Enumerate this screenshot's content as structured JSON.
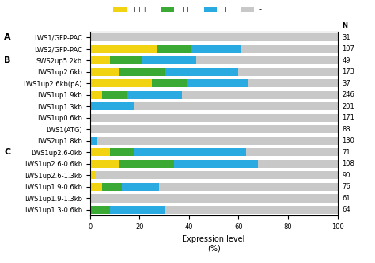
{
  "chart_data": {
    "type": "bar",
    "orientation": "horizontal",
    "stacked": true,
    "xlabel": "Expression level\n(%)",
    "categories": [
      "LWS1/GFP-PAC",
      "LWS2/GFP-PAC",
      "SWS2up5.2kb",
      "LWS1up2.6kb",
      "LWS1up2.6kb(pA)",
      "LWS1up1.9kb",
      "LWS1up1.3kb",
      "LWS1up0.6kb",
      "LWS1(ATG)",
      "LWS2up1.8kb",
      "LWS1up2.6-0kb",
      "LWS1up2.6-0.6kb",
      "LWS1up2.6-1.3kb",
      "LWS1up1.9-0.6kb",
      "LWS1up1.9-1.3kb",
      "LWS1up1.3-0.6kb"
    ],
    "groups": [
      "A",
      "A",
      "B",
      "B",
      "B",
      "B",
      "B",
      "B",
      "B",
      "B",
      "C",
      "C",
      "C",
      "C",
      "C",
      "C"
    ],
    "n_label": "N",
    "n": [
      31,
      107,
      49,
      173,
      37,
      246,
      201,
      171,
      83,
      130,
      71,
      108,
      90,
      76,
      61,
      64
    ],
    "series": [
      {
        "name": "+++",
        "color": "#f2d311",
        "values": [
          0,
          27,
          8,
          12,
          25,
          5,
          0,
          0,
          0,
          0,
          8,
          12,
          2,
          5,
          0,
          0
        ]
      },
      {
        "name": "++",
        "color": "#3aaa35",
        "values": [
          0,
          14,
          13,
          18,
          14,
          10,
          0,
          0,
          0,
          0,
          10,
          22,
          0,
          8,
          0,
          8
        ]
      },
      {
        "name": "+",
        "color": "#29abe2",
        "values": [
          0,
          20,
          22,
          30,
          25,
          22,
          18,
          0,
          0,
          3,
          45,
          34,
          0,
          15,
          0,
          22
        ]
      },
      {
        "name": "-",
        "color": "#c8c8c8",
        "values": [
          100,
          39,
          57,
          40,
          36,
          63,
          82,
          100,
          100,
          97,
          37,
          32,
          98,
          72,
          100,
          70
        ]
      }
    ],
    "xlim": [
      0,
      100
    ],
    "xticks": [
      0,
      20,
      40,
      60,
      80,
      100
    ],
    "legend": "upper center",
    "grid": false
  }
}
